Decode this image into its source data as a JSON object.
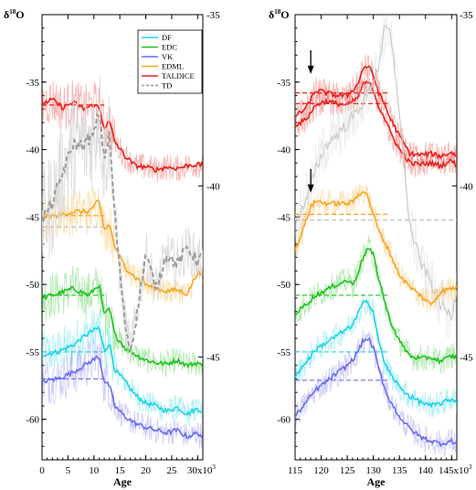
{
  "chart_data": [
    {
      "type": "line",
      "title": "",
      "ylabel": "δ18O",
      "xlabel": "Age",
      "x_tick_labels": [
        "0",
        "5",
        "10",
        "15",
        "20",
        "25",
        "30x10³"
      ],
      "x_ticks": [
        0,
        5,
        10,
        15,
        20,
        25,
        30
      ],
      "xlim": [
        0,
        31
      ],
      "ylim_left": [
        -63,
        -30
      ],
      "ylim_right": [
        -48,
        -35
      ],
      "y_ticks_left": [
        -35,
        -40,
        -45,
        -50,
        -55,
        -60
      ],
      "y_ticks_right": [
        -35,
        -40,
        -45
      ],
      "legend": {
        "placement": "top-right",
        "entries": [
          "DF",
          "EDC",
          "VK",
          "EDML",
          "TALDICE",
          "TD"
        ]
      },
      "series": [
        {
          "name": "DF",
          "color": "#19d3e6",
          "axis": "left",
          "x": [
            0,
            3,
            6,
            9,
            11,
            12,
            13,
            14,
            16,
            18,
            20,
            22,
            24,
            26,
            28,
            30,
            31
          ],
          "y": [
            -55.2,
            -55,
            -54.5,
            -53.6,
            -53.2,
            -55,
            -54.3,
            -56.3,
            -57.2,
            -58.2,
            -58.8,
            -59,
            -59.4,
            -59.1,
            -59.6,
            -59.2,
            -59.4
          ],
          "mean": {
            "x": [
              0,
              12
            ],
            "y": -55
          }
        },
        {
          "name": "EDC",
          "color": "#1ec21e",
          "axis": "left",
          "x": [
            0,
            3,
            6,
            9,
            11,
            12,
            13,
            14,
            16,
            18,
            20,
            22,
            24,
            26,
            28,
            30,
            31
          ],
          "y": [
            -51,
            -50.7,
            -50.3,
            -50.8,
            -50,
            -52.3,
            -51.8,
            -53.7,
            -54.7,
            -55.2,
            -55.6,
            -55.8,
            -55.9,
            -55.6,
            -56,
            -55.8,
            -56.1
          ],
          "mean": {
            "x": [
              0,
              12
            ],
            "y": -50.8
          }
        },
        {
          "name": "VK",
          "color": "#6b6bf0",
          "axis": "left",
          "x": [
            0,
            3,
            6,
            9,
            11,
            12,
            13,
            14,
            16,
            18,
            20,
            22,
            24,
            26,
            28,
            30,
            31
          ],
          "y": [
            -57.2,
            -57,
            -56.5,
            -55.8,
            -55.3,
            -57.2,
            -57.5,
            -59,
            -59.8,
            -60.3,
            -60.6,
            -60.8,
            -61,
            -60.8,
            -61.3,
            -61,
            -61.3
          ],
          "mean": {
            "x": [
              0,
              12
            ],
            "y": -57
          }
        },
        {
          "name": "EDML",
          "color": "#f5a623",
          "axis": "left",
          "x": [
            0,
            3,
            6,
            9,
            11,
            12,
            13,
            14,
            16,
            18,
            20,
            22,
            24,
            26,
            28,
            30,
            31
          ],
          "y": [
            -45,
            -44.9,
            -44.6,
            -44.6,
            -43.8,
            -46,
            -45.5,
            -47.2,
            -48.7,
            -49.5,
            -50,
            -50.3,
            -50.5,
            -50.4,
            -50.7,
            -49.1,
            -49.4
          ],
          "mean": {
            "x": [
              0,
              12
            ],
            "y": -44.9
          }
        },
        {
          "name": "TALDICE",
          "color": "#e8201a",
          "axis": "left",
          "x": [
            0,
            2,
            4,
            6,
            8,
            10,
            11,
            12,
            13,
            14,
            16,
            18,
            20,
            22,
            24,
            26,
            28,
            30,
            31
          ],
          "y": [
            -36.6,
            -36.3,
            -36.9,
            -36.5,
            -37,
            -36.7,
            -36.9,
            -38.4,
            -37.9,
            -39.4,
            -40.5,
            -41.2,
            -41.3,
            -41.5,
            -41.3,
            -41.4,
            -41.2,
            -41.1,
            -41.2
          ],
          "mean": {
            "x": [
              0,
              12
            ],
            "y": -36.7
          }
        },
        {
          "name": "TD",
          "color": "#9a9a9a",
          "axis": "right",
          "dashed": true,
          "x": [
            0,
            2,
            4,
            6,
            8,
            10,
            11,
            12,
            13,
            14,
            15,
            16,
            17,
            18,
            20,
            22,
            24,
            26,
            28,
            30,
            31
          ],
          "y": [
            -41,
            -40.5,
            -39.6,
            -38.8,
            -38.8,
            -38.5,
            -37.8,
            -39.2,
            -38.5,
            -40.8,
            -42.5,
            -44,
            -44.8,
            -44,
            -42,
            -43,
            -42,
            -42.3,
            -41.8,
            -42.2,
            -42
          ],
          "mean": {
            "x": [
              0,
              12
            ],
            "y": -41.2
          }
        }
      ]
    },
    {
      "type": "line",
      "title": "",
      "ylabel": "δ18O",
      "xlabel": "Age",
      "x_tick_labels": [
        "115",
        "120",
        "125",
        "130",
        "135",
        "140",
        "145x10³"
      ],
      "x_ticks": [
        115,
        120,
        125,
        130,
        135,
        140,
        145
      ],
      "xlim": [
        115,
        146
      ],
      "ylim_left": [
        -63,
        -30
      ],
      "ylim_right": [
        -48,
        -35
      ],
      "y_ticks_left": [
        -35,
        -40,
        -45,
        -50,
        -55,
        -60
      ],
      "y_ticks_right": [
        -35,
        -40,
        -45
      ],
      "arrows": [
        {
          "x": 118,
          "y": -34.4
        },
        {
          "x": 118,
          "y": -43.2
        }
      ],
      "series": [
        {
          "name": "TALDICE",
          "color": "#e8201a",
          "axis": "left",
          "x": [
            115,
            117,
            119,
            121,
            123,
            125,
            127,
            128,
            129,
            130,
            131,
            132,
            133,
            135,
            137,
            139,
            141,
            143,
            145,
            146
          ],
          "y": [
            -37.5,
            -37,
            -35.6,
            -35.8,
            -36,
            -36,
            -35.2,
            -34,
            -33.8,
            -34.5,
            -35.8,
            -36.5,
            -37.5,
            -39,
            -40.3,
            -40.4,
            -40.3,
            -40.5,
            -40.2,
            -40.5
          ],
          "mean": {
            "x": [
              115,
              133
            ],
            "y": -35.8
          }
        },
        {
          "name": "TALDICE",
          "color": "#e8201a",
          "axis": "left",
          "x": [
            115,
            117,
            119,
            121,
            123,
            125,
            127,
            128,
            129,
            130,
            131,
            132,
            133,
            135,
            137,
            139,
            141,
            143,
            145,
            146
          ],
          "y": [
            -38.2,
            -37.8,
            -36.7,
            -36.4,
            -36.6,
            -36.7,
            -36.2,
            -35.2,
            -35,
            -35.6,
            -36.8,
            -37.5,
            -38.5,
            -40,
            -41,
            -41.1,
            -41,
            -41.2,
            -40.8,
            -41.2
          ],
          "mean": {
            "x": [
              115,
              133
            ],
            "y": -36.6
          }
        },
        {
          "name": "TD",
          "color": "#c8c8c8",
          "axis": "right",
          "dashed": false,
          "x": [
            115,
            117,
            119,
            121,
            123,
            125,
            127,
            129,
            131,
            132,
            133,
            134,
            135,
            136,
            137,
            139,
            141,
            143,
            145,
            146
          ],
          "y": [
            -41,
            -40.5,
            -39.5,
            -38.8,
            -38.5,
            -38.2,
            -37.8,
            -37.3,
            -36.5,
            -35.5,
            -35.4,
            -36.5,
            -37.8,
            -39.5,
            -41.2,
            -42.2,
            -42.8,
            -43.5,
            -43.8,
            -43
          ],
          "mean": {
            "x": [
              115,
              146
            ],
            "y": -41
          }
        },
        {
          "name": "EDML",
          "color": "#f5a623",
          "axis": "left",
          "x": [
            115,
            116,
            117,
            118,
            119,
            121,
            123,
            125,
            126,
            127,
            128,
            129,
            130,
            131,
            133,
            135,
            137,
            139,
            141,
            143,
            145,
            146
          ],
          "y": [
            -47.5,
            -46.5,
            -45.4,
            -44.2,
            -43.8,
            -44,
            -44,
            -44,
            -43.9,
            -43.4,
            -43,
            -43.5,
            -44.8,
            -46,
            -47.5,
            -49.3,
            -50.2,
            -50.8,
            -51.5,
            -50.5,
            -50.3,
            -50.2
          ],
          "mean": {
            "x": [
              115,
              133
            ],
            "y": -44.8
          }
        },
        {
          "name": "EDC",
          "color": "#1ec21e",
          "axis": "left",
          "x": [
            115,
            117,
            119,
            121,
            123,
            125,
            126,
            127,
            128,
            129,
            130,
            131,
            132,
            133,
            135,
            137,
            139,
            141,
            143,
            145,
            146
          ],
          "y": [
            -52.2,
            -51.5,
            -50.8,
            -50.4,
            -50,
            -49.7,
            -50,
            -49.2,
            -48,
            -47.3,
            -47.8,
            -49.5,
            -51,
            -52.5,
            -54.2,
            -55.3,
            -55.5,
            -55.4,
            -55.7,
            -55.3,
            -55.4
          ],
          "mean": {
            "x": [
              115,
              133
            ],
            "y": -50.8
          }
        },
        {
          "name": "DF",
          "color": "#19d3e6",
          "axis": "left",
          "x": [
            115,
            117,
            119,
            121,
            123,
            125,
            126,
            127,
            128,
            129,
            130,
            131,
            132,
            133,
            135,
            137,
            139,
            141,
            143,
            145,
            146
          ],
          "y": [
            -56.8,
            -55.8,
            -54.8,
            -54.3,
            -53.8,
            -53.3,
            -53,
            -52.2,
            -51.4,
            -51.3,
            -52,
            -54.2,
            -55.6,
            -56.5,
            -57.6,
            -58.3,
            -58.7,
            -59,
            -58.8,
            -58.5,
            -58.7
          ],
          "mean": {
            "x": [
              115,
              133
            ],
            "y": -55
          }
        },
        {
          "name": "VK",
          "color": "#6b6bf0",
          "axis": "left",
          "x": [
            115,
            117,
            119,
            121,
            123,
            125,
            126,
            127,
            128,
            129,
            130,
            131,
            132,
            133,
            135,
            137,
            139,
            141,
            143,
            145,
            146
          ],
          "y": [
            -59.8,
            -58.8,
            -57.8,
            -57.2,
            -56.6,
            -56,
            -55.6,
            -55,
            -54.2,
            -54,
            -54.7,
            -56.2,
            -57.5,
            -58.5,
            -59.8,
            -60.7,
            -61.3,
            -61.6,
            -61.8,
            -61.6,
            -61.8
          ],
          "mean": {
            "x": [
              115,
              133
            ],
            "y": -57.1
          }
        }
      ]
    }
  ]
}
